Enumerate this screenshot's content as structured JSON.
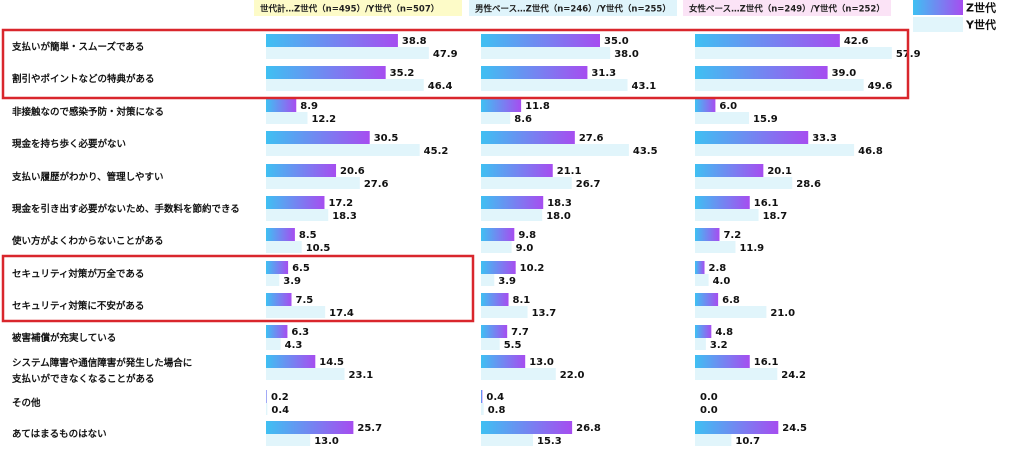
{
  "chart_data": {
    "type": "bar",
    "orientation": "horizontal",
    "panels": [
      {
        "title": "世代計…Z世代（n=495）/Y世代（n=507）",
        "header_color": "#fdfbc8"
      },
      {
        "title": "男性ベース…Z世代（n=246）/Y世代（n=255）",
        "header_color": "#dff4fb"
      },
      {
        "title": "女性ベース…Z世代（n=249）/Y世代（n=252）",
        "header_color": "#fbe3f6"
      }
    ],
    "categories": [
      [
        "支払いが簡単・スムーズである"
      ],
      [
        "割引やポイントなどの特典がある"
      ],
      [
        "非接触なので感染予防・対策になる"
      ],
      [
        "現金を持ち歩く必要がない"
      ],
      [
        "支払い履歴がわかり、管理しやすい"
      ],
      [
        "現金を引き出す必要がないため、手数料を節約できる"
      ],
      [
        "使い方がよくわからないことがある"
      ],
      [
        "セキュリティ対策が万全である"
      ],
      [
        "セキュリティ対策に不安がある"
      ],
      [
        "被害補償が充実している"
      ],
      [
        "システム障害や通信障害が発生した場合に",
        "支払いができなくなることがある"
      ],
      [
        "その他"
      ],
      [
        "あてはまるものはない"
      ]
    ],
    "series": [
      {
        "name": "Z世代",
        "color_from": "#3fc0f2",
        "color_to": "#a64df0",
        "values": [
          [
            38.8,
            35.2,
            8.9,
            30.5,
            20.6,
            17.2,
            8.5,
            6.5,
            7.5,
            6.3,
            14.5,
            0.2,
            25.7
          ],
          [
            35.0,
            31.3,
            11.8,
            27.6,
            21.1,
            18.3,
            9.8,
            10.2,
            8.1,
            7.7,
            13.0,
            0.4,
            26.8
          ],
          [
            42.6,
            39.0,
            6.0,
            33.3,
            20.1,
            16.1,
            7.2,
            2.8,
            6.8,
            4.8,
            16.1,
            0.0,
            24.5
          ]
        ]
      },
      {
        "name": "Y世代",
        "color": "#e1f5fb",
        "values": [
          [
            47.9,
            46.4,
            12.2,
            45.2,
            27.6,
            18.3,
            10.5,
            3.9,
            17.4,
            4.3,
            23.1,
            0.4,
            13.0
          ],
          [
            38.0,
            43.1,
            8.6,
            43.5,
            26.7,
            18.0,
            9.0,
            3.9,
            13.7,
            5.5,
            22.0,
            0.8,
            15.3
          ],
          [
            57.9,
            49.6,
            15.9,
            46.8,
            28.6,
            18.7,
            11.9,
            4.0,
            21.0,
            3.2,
            24.2,
            0.0,
            10.7
          ]
        ]
      }
    ],
    "xlim": [
      0,
      60
    ],
    "highlight_groups": [
      [
        0,
        1
      ],
      [
        7,
        8
      ]
    ],
    "highlight_color": "#d9262c"
  }
}
